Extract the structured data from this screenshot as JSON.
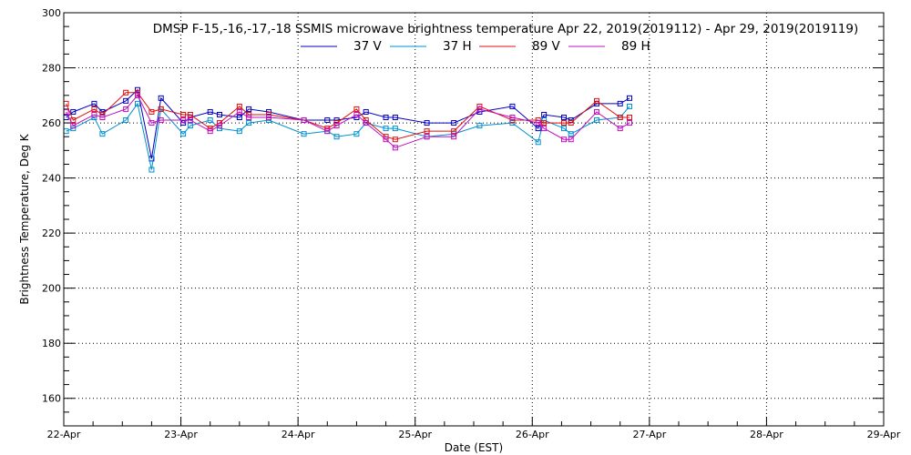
{
  "chart_data": {
    "type": "line",
    "title": "DMSP F-15,-16,-17,-18 SSMIS microwave brightness temperature Apr 22, 2019(2019112) - Apr 29, 2019(2019119)",
    "xlabel": "Date (EST)",
    "ylabel": "Brightness Temperature, Deg K",
    "xlim": [
      0,
      7
    ],
    "ylim": [
      150,
      300
    ],
    "grid": true,
    "legend_position": "top-center",
    "x_ticks": [
      {
        "value": 0,
        "label": "22-Apr"
      },
      {
        "value": 1,
        "label": "23-Apr"
      },
      {
        "value": 2,
        "label": "24-Apr"
      },
      {
        "value": 3,
        "label": "25-Apr"
      },
      {
        "value": 4,
        "label": "26-Apr"
      },
      {
        "value": 5,
        "label": "27-Apr"
      },
      {
        "value": 6,
        "label": "28-Apr"
      },
      {
        "value": 7,
        "label": "29-Apr"
      }
    ],
    "y_ticks": [
      {
        "value": 160,
        "label": "160"
      },
      {
        "value": 180,
        "label": "180"
      },
      {
        "value": 200,
        "label": "200"
      },
      {
        "value": 220,
        "label": "220"
      },
      {
        "value": 240,
        "label": "240"
      },
      {
        "value": 260,
        "label": "260"
      },
      {
        "value": 280,
        "label": "280"
      },
      {
        "value": 300,
        "label": "300"
      }
    ],
    "series": [
      {
        "name": "37 V",
        "color": "#0000c0",
        "x": [
          0.02,
          0.08,
          0.26,
          0.33,
          0.53,
          0.63,
          0.75,
          0.83,
          1.02,
          1.08,
          1.25,
          1.33,
          1.5,
          1.58,
          1.75,
          2.05,
          2.25,
          2.33,
          2.5,
          2.58,
          2.75,
          2.83,
          3.1,
          3.33,
          3.55,
          3.83,
          4.05,
          4.1,
          4.27,
          4.33,
          4.55,
          4.75,
          4.83
        ],
        "y": [
          262,
          264,
          267,
          264,
          268,
          272,
          247,
          269,
          260,
          262,
          264,
          263,
          262,
          265,
          264,
          261,
          261,
          261,
          262,
          264,
          262,
          262,
          260,
          260,
          264,
          266,
          258,
          263,
          262,
          261,
          267,
          267,
          269
        ]
      },
      {
        "name": "37 H",
        "color": "#0090d0",
        "x": [
          0.02,
          0.08,
          0.26,
          0.33,
          0.53,
          0.63,
          0.75,
          0.83,
          1.02,
          1.08,
          1.25,
          1.33,
          1.5,
          1.58,
          1.75,
          2.05,
          2.25,
          2.33,
          2.5,
          2.58,
          2.75,
          2.83,
          3.1,
          3.33,
          3.55,
          3.83,
          4.05,
          4.1,
          4.27,
          4.33,
          4.55,
          4.75,
          4.83
        ],
        "y": [
          257,
          258,
          262,
          256,
          261,
          267,
          243,
          265,
          256,
          259,
          261,
          258,
          257,
          260,
          261,
          256,
          257,
          255,
          256,
          260,
          258,
          258,
          255,
          256,
          259,
          260,
          253,
          261,
          258,
          256,
          261,
          262,
          266
        ]
      },
      {
        "name": "89 V",
        "color": "#e01010",
        "x": [
          0.02,
          0.08,
          0.26,
          0.33,
          0.53,
          0.63,
          0.75,
          0.83,
          1.02,
          1.08,
          1.25,
          1.33,
          1.5,
          1.58,
          1.75,
          2.05,
          2.25,
          2.33,
          2.5,
          2.58,
          2.75,
          2.83,
          3.1,
          3.33,
          3.55,
          3.83,
          4.05,
          4.1,
          4.27,
          4.33,
          4.55,
          4.75,
          4.83
        ],
        "y": [
          267,
          261,
          265,
          263,
          271,
          271,
          264,
          265,
          263,
          263,
          258,
          260,
          266,
          263,
          263,
          261,
          258,
          260,
          265,
          261,
          255,
          254,
          257,
          257,
          266,
          261,
          261,
          260,
          260,
          260,
          268,
          262,
          262
        ]
      },
      {
        "name": "89 H",
        "color": "#c010c0",
        "x": [
          0.02,
          0.08,
          0.26,
          0.33,
          0.53,
          0.63,
          0.75,
          0.83,
          1.02,
          1.08,
          1.25,
          1.33,
          1.5,
          1.58,
          1.75,
          2.05,
          2.25,
          2.33,
          2.5,
          2.58,
          2.75,
          2.83,
          3.1,
          3.33,
          3.55,
          3.83,
          4.05,
          4.1,
          4.27,
          4.33,
          4.55,
          4.75,
          4.83
        ],
        "y": [
          264,
          259,
          263,
          262,
          265,
          270,
          260,
          261,
          261,
          261,
          257,
          259,
          264,
          262,
          262,
          261,
          257,
          259,
          263,
          260,
          254,
          251,
          255,
          255,
          265,
          262,
          260,
          258,
          254,
          254,
          264,
          258,
          260
        ]
      }
    ]
  }
}
